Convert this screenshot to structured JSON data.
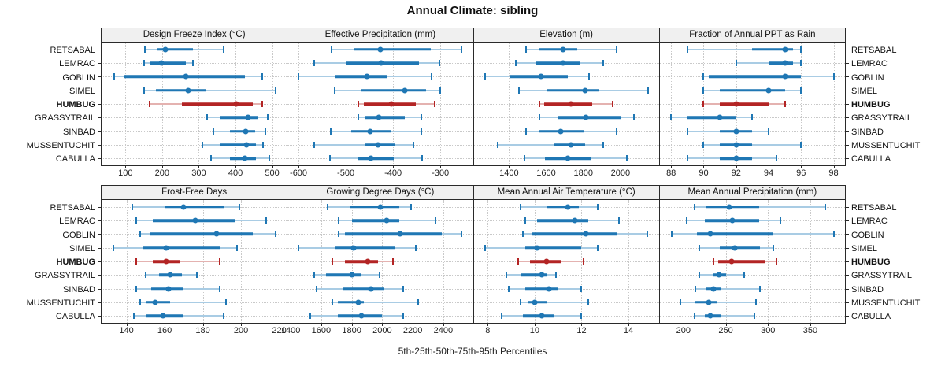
{
  "colors": {
    "blue": "#1f77b4",
    "blue_light": "#a9cce4",
    "red": "#b32424",
    "red_light": "#e4b2b0",
    "header_bg": "#f0f0f0",
    "grid": "#c9c9c9",
    "border": "#2a2a2a"
  },
  "chart_data": {
    "type": "dotplot-intervals",
    "title": "Annual Climate: sibling",
    "footer": "5th-25th-50th-75th-95th Percentiles",
    "percentiles": [
      "5th",
      "25th",
      "50th",
      "75th",
      "95th"
    ],
    "rows": [
      "RETSABAL",
      "LEMRAC",
      "GOBLIN",
      "SIMEL",
      "HUMBUG",
      "GRASSYTRAIL",
      "SINBAD",
      "MUSSENTUCHIT",
      "CABULLA"
    ],
    "highlight": "HUMBUG",
    "legend_position": "none",
    "grid": "dotted",
    "panels": [
      {
        "title": "Design Freeze Index (°C)",
        "grid_row": 0,
        "domain": [
          35,
          540
        ],
        "ticks": [
          100,
          200,
          300,
          400,
          500
        ],
        "values": [
          [
            153,
            186,
            209,
            285,
            367
          ],
          [
            150,
            165,
            199,
            264,
            283
          ],
          [
            70,
            98,
            265,
            426,
            473
          ],
          [
            151,
            183,
            271,
            320,
            509
          ],
          [
            165,
            255,
            402,
            447,
            473
          ],
          [
            322,
            360,
            435,
            461,
            488
          ],
          [
            340,
            384,
            428,
            453,
            482
          ],
          [
            310,
            357,
            430,
            456,
            474
          ],
          [
            334,
            384,
            426,
            456,
            493
          ]
        ]
      },
      {
        "title": "Effective Precipitation (mm)",
        "grid_row": 0,
        "domain": [
          -623,
          -231
        ],
        "ticks": [
          -600,
          -500,
          -400,
          -300
        ],
        "values": [
          [
            -530,
            -482,
            -426,
            -320,
            -255
          ],
          [
            -567,
            -498,
            -425,
            -345,
            -301
          ],
          [
            -600,
            -524,
            -455,
            -412,
            -318
          ],
          [
            -524,
            -466,
            -375,
            -330,
            -300
          ],
          [
            -474,
            -461,
            -403,
            -352,
            -312
          ],
          [
            -473,
            -460,
            -430,
            -375,
            -340
          ],
          [
            -531,
            -489,
            -449,
            -405,
            -340
          ],
          [
            -566,
            -459,
            -431,
            -395,
            -356
          ],
          [
            -534,
            -473,
            -446,
            -398,
            -339
          ]
        ]
      },
      {
        "title": "Elevation (m)",
        "grid_row": 0,
        "domain": [
          1210,
          2207
        ],
        "ticks": [
          1400,
          1600,
          1800,
          2000
        ],
        "values": [
          [
            1492,
            1562,
            1693,
            1768,
            1979
          ],
          [
            1435,
            1542,
            1689,
            1785,
            1909
          ],
          [
            1270,
            1401,
            1573,
            1717,
            1830
          ],
          [
            1454,
            1602,
            1810,
            1883,
            2148
          ],
          [
            1562,
            1590,
            1735,
            1848,
            1957
          ],
          [
            1562,
            1661,
            1813,
            1999,
            2074
          ],
          [
            1492,
            1562,
            1679,
            1802,
            1979
          ],
          [
            1341,
            1641,
            1735,
            1810,
            1909
          ],
          [
            1482,
            1595,
            1717,
            1838,
            2036
          ]
        ]
      },
      {
        "title": "Fraction of Annual PPT as Rain",
        "grid_row": 0,
        "domain": [
          87.3,
          98.7
        ],
        "ticks": [
          88,
          90,
          92,
          94,
          96,
          98
        ],
        "values": [
          [
            89,
            93,
            95,
            95.5,
            96
          ],
          [
            92,
            94,
            95,
            95.5,
            96
          ],
          [
            90,
            90.3,
            95,
            96,
            98
          ],
          [
            90,
            91,
            94,
            95,
            96
          ],
          [
            90,
            91,
            92,
            94,
            95
          ],
          [
            88,
            89,
            91,
            92,
            93
          ],
          [
            89,
            91,
            92,
            93,
            94
          ],
          [
            90,
            91,
            92,
            93,
            96
          ],
          [
            89,
            91,
            92,
            93,
            94.5
          ]
        ]
      },
      {
        "title": "Frost-Free Days",
        "grid_row": 1,
        "domain": [
          127,
          224
        ],
        "ticks": [
          140,
          160,
          180,
          200,
          220
        ],
        "values": [
          [
            143,
            160,
            170,
            191,
            199
          ],
          [
            145,
            154,
            176,
            197,
            213
          ],
          [
            147,
            152,
            187,
            206,
            218
          ],
          [
            133,
            149,
            161,
            189,
            198
          ],
          [
            145,
            154,
            161,
            168,
            189
          ],
          [
            150,
            157,
            163,
            169,
            177
          ],
          [
            145,
            153,
            162,
            170,
            189
          ],
          [
            147,
            150,
            155,
            163,
            192
          ],
          [
            144,
            150,
            159,
            170,
            191
          ]
        ]
      },
      {
        "title": "Growing Degree Days (°C)",
        "grid_row": 1,
        "domain": [
          1380,
          2594
        ],
        "ticks": [
          1400,
          1600,
          1800,
          2000,
          2200,
          2400
        ],
        "values": [
          [
            1640,
            1789,
            1989,
            2109,
            2188
          ],
          [
            1712,
            1801,
            2028,
            2109,
            2349
          ],
          [
            1712,
            1754,
            2119,
            2388,
            2520
          ],
          [
            1451,
            1694,
            1811,
            2088,
            2222
          ],
          [
            1674,
            1754,
            1903,
            1972,
            2068
          ],
          [
            1554,
            1630,
            1801,
            1857,
            1982
          ],
          [
            1571,
            1743,
            1925,
            2006,
            2136
          ],
          [
            1674,
            1708,
            1845,
            1879,
            2234
          ],
          [
            1527,
            1708,
            1862,
            1999,
            2136
          ]
        ]
      },
      {
        "title": "Mean Annual Air Temperature (°C)",
        "grid_row": 1,
        "domain": [
          7.4,
          15.3
        ],
        "ticks": [
          8,
          10,
          12,
          14
        ],
        "values": [
          [
            9.4,
            10.5,
            11.4,
            11.9,
            12.7
          ],
          [
            9.6,
            10.1,
            11.7,
            12.3,
            13.6
          ],
          [
            9.5,
            9.9,
            12.2,
            13.5,
            14.8
          ],
          [
            7.9,
            9.6,
            10.1,
            12.0,
            12.7
          ],
          [
            9.3,
            9.8,
            10.5,
            11.1,
            12.1
          ],
          [
            8.8,
            9.4,
            10.3,
            10.5,
            10.9
          ],
          [
            8.9,
            9.6,
            10.6,
            11.0,
            12.0
          ],
          [
            9.4,
            9.7,
            10.0,
            10.5,
            12.3
          ],
          [
            8.6,
            9.5,
            10.3,
            10.8,
            12.0
          ]
        ]
      },
      {
        "title": "Mean Annual Precipitation (mm)",
        "grid_row": 1,
        "domain": [
          172,
          391
        ],
        "ticks": [
          200,
          250,
          300,
          350
        ],
        "values": [
          [
            213,
            227,
            254,
            290,
            368
          ],
          [
            204,
            225,
            258,
            290,
            315
          ],
          [
            186,
            216,
            232,
            305,
            378
          ],
          [
            219,
            243,
            261,
            290,
            306
          ],
          [
            236,
            241,
            257,
            296,
            310
          ],
          [
            219,
            235,
            242,
            250,
            272
          ],
          [
            214,
            226,
            236,
            245,
            290
          ],
          [
            196,
            214,
            230,
            240,
            286
          ],
          [
            213,
            225,
            232,
            245,
            284
          ]
        ]
      }
    ]
  }
}
